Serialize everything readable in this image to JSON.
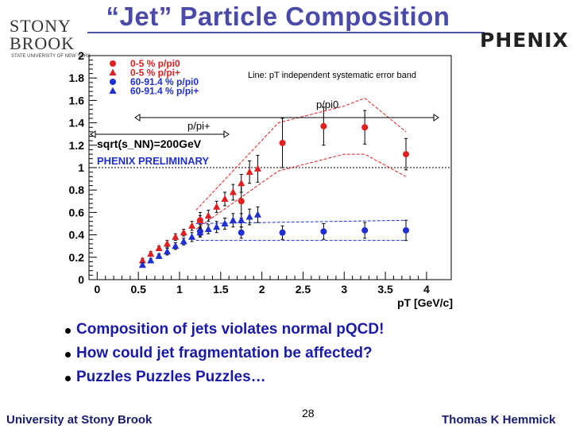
{
  "slide": {
    "title": "“Jet” Particle Composition",
    "logo_left_line1": "STONY",
    "logo_left_line2": "BROOK",
    "logo_left_sub": "STATE UNIVERSITY OF NEW YORK",
    "logo_right": "PHENIX",
    "bullets": [
      "Composition of jets violates normal pQCD!",
      "How could jet fragmentation be affected?",
      "Puzzles Puzzles Puzzles…"
    ],
    "footer_left": "University at Stony Brook",
    "page_number": "28",
    "footer_right": "Thomas K Hemmick"
  },
  "chart_data": {
    "type": "scatter",
    "xlabel": "pT [GeV/c]",
    "ylabel": "",
    "xlim": [
      -0.1,
      4.3
    ],
    "ylim": [
      0,
      2
    ],
    "xticks": [
      "0",
      "0.5",
      "1",
      "1.5",
      "2",
      "2.5",
      "3",
      "3.5",
      "4"
    ],
    "yticks": [
      "0",
      "0.2",
      "0.4",
      "0.6",
      "0.8",
      "1",
      "1.2",
      "1.4",
      "1.6",
      "1.8",
      "2"
    ],
    "reference_line_y": 1,
    "legend": [
      {
        "label": "0-5 % p/pi0",
        "color": "#e02020",
        "marker": "circle"
      },
      {
        "label": "0-5 % p/pi+",
        "color": "#e02020",
        "marker": "triangle"
      },
      {
        "label": "60-91.4 % p/pi0",
        "color": "#2030d0",
        "marker": "circle"
      },
      {
        "label": "60-91.4 % p/pi+",
        "color": "#2030d0",
        "marker": "triangle"
      }
    ],
    "annotations": {
      "syst_note": "Line: pT independent systematic error band",
      "ppi0_label": "p/pi0",
      "ppip_label": "p/pi+",
      "energy": "sqrt(s_NN)=200GeV",
      "preliminary": "PHENIX PRELIMINARY"
    },
    "series": [
      {
        "name": "0-5 % p/pi0",
        "color": "#e02020",
        "marker": "circle",
        "x": [
          1.25,
          1.75,
          2.25,
          2.75,
          3.25,
          3.75
        ],
        "y": [
          0.53,
          0.7,
          1.22,
          1.37,
          1.36,
          1.12
        ],
        "err": [
          0.07,
          0.15,
          0.22,
          0.17,
          0.15,
          0.14
        ]
      },
      {
        "name": "0-5 % p/pi+",
        "color": "#e02020",
        "marker": "triangle",
        "x": [
          0.55,
          0.65,
          0.75,
          0.85,
          0.95,
          1.05,
          1.15,
          1.25,
          1.35,
          1.45,
          1.55,
          1.65,
          1.75,
          1.85,
          1.95
        ],
        "y": [
          0.17,
          0.23,
          0.28,
          0.32,
          0.38,
          0.42,
          0.48,
          0.53,
          0.57,
          0.65,
          0.72,
          0.78,
          0.86,
          0.96,
          0.99
        ],
        "err": [
          0.02,
          0.02,
          0.02,
          0.03,
          0.03,
          0.03,
          0.04,
          0.04,
          0.05,
          0.05,
          0.06,
          0.07,
          0.08,
          0.1,
          0.12
        ]
      },
      {
        "name": "60-91.4 % p/pi0",
        "color": "#2030d0",
        "marker": "circle",
        "x": [
          1.25,
          1.75,
          2.25,
          2.75,
          3.25,
          3.75
        ],
        "y": [
          0.43,
          0.42,
          0.42,
          0.43,
          0.44,
          0.44
        ],
        "err": [
          0.04,
          0.05,
          0.06,
          0.07,
          0.07,
          0.09
        ]
      },
      {
        "name": "60-91.4 % p/pi+",
        "color": "#2030d0",
        "marker": "triangle",
        "x": [
          0.55,
          0.65,
          0.75,
          0.85,
          0.95,
          1.05,
          1.15,
          1.25,
          1.35,
          1.45,
          1.55,
          1.65,
          1.75,
          1.85,
          1.95
        ],
        "y": [
          0.13,
          0.17,
          0.21,
          0.25,
          0.3,
          0.34,
          0.38,
          0.42,
          0.45,
          0.47,
          0.5,
          0.53,
          0.53,
          0.56,
          0.58
        ],
        "err": [
          0.02,
          0.02,
          0.02,
          0.03,
          0.03,
          0.03,
          0.04,
          0.04,
          0.04,
          0.05,
          0.05,
          0.06,
          0.06,
          0.07,
          0.07
        ]
      }
    ],
    "band_lines": [
      {
        "name": "central p/pi0 upper",
        "color": "#e02020",
        "x": [
          1.2,
          2.2,
          3.0,
          3.25,
          3.75
        ],
        "y": [
          0.62,
          1.4,
          1.55,
          1.62,
          1.32
        ]
      },
      {
        "name": "central p/pi0 lower",
        "color": "#e02020",
        "x": [
          1.2,
          2.2,
          3.0,
          3.25,
          3.75
        ],
        "y": [
          0.45,
          0.97,
          1.12,
          1.12,
          0.92
        ]
      },
      {
        "name": "peripheral p/pi0 upper",
        "color": "#2030d0",
        "x": [
          1.2,
          3.75
        ],
        "y": [
          0.5,
          0.53
        ]
      },
      {
        "name": "peripheral p/pi0 lower",
        "color": "#2030d0",
        "x": [
          1.2,
          3.75
        ],
        "y": [
          0.35,
          0.35
        ]
      }
    ]
  }
}
